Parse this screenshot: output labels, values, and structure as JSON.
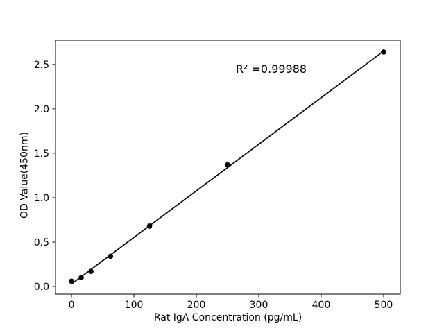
{
  "chart_data": {
    "type": "scatter",
    "title": "",
    "xlabel": "Rat IgA Concentration (pg/mL)",
    "ylabel": "OD Value(450nm)",
    "annotation": "R² =0.99988",
    "x": [
      0,
      15.625,
      31.25,
      62.5,
      125,
      250,
      500
    ],
    "y": [
      0.06,
      0.1,
      0.17,
      0.34,
      0.68,
      1.37,
      2.64
    ],
    "fit_line": {
      "x": [
        0,
        500
      ],
      "y": [
        0.028,
        2.65
      ]
    },
    "x_ticks": [
      "0",
      "100",
      "200",
      "300",
      "400",
      "500"
    ],
    "y_ticks": [
      "0.0",
      "0.5",
      "1.0",
      "1.5",
      "2.0",
      "2.5"
    ],
    "xlim": [
      -25.6,
      526.7
    ],
    "ylim": [
      -0.086,
      2.772
    ],
    "grid": false,
    "legend": null,
    "colors": {
      "marker": "#000000",
      "line": "#000000",
      "axis": "#000000",
      "text": "#000000",
      "background": "#ffffff"
    }
  }
}
